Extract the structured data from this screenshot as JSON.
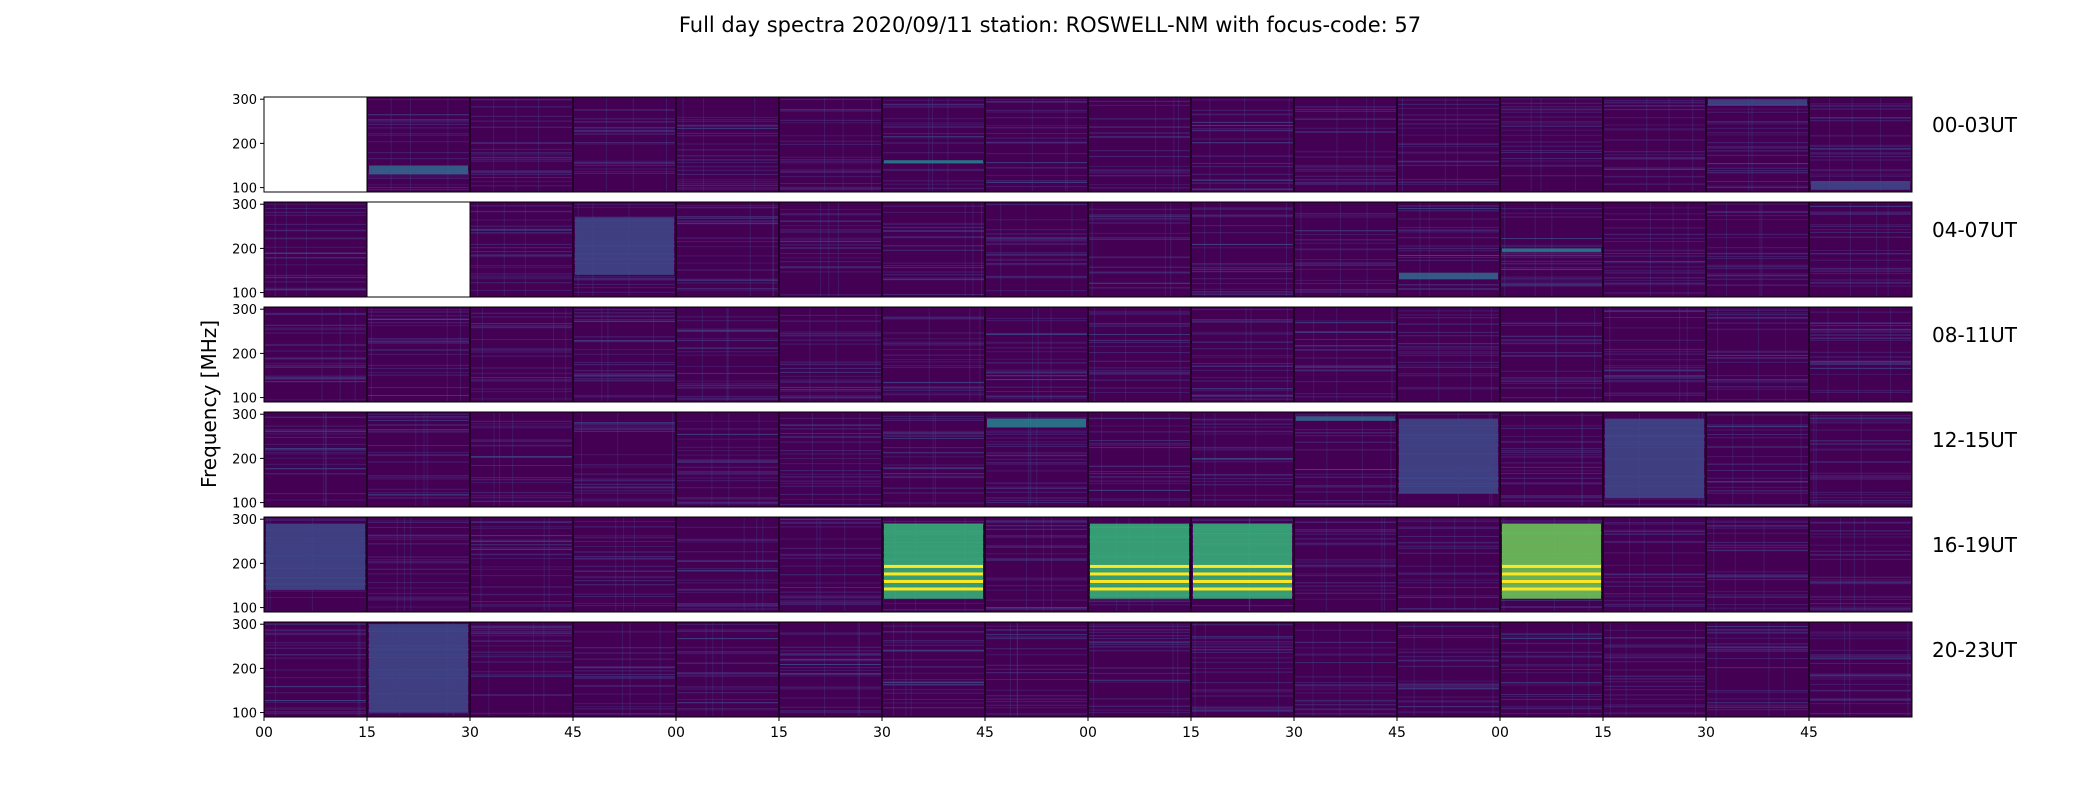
{
  "chart_data": {
    "type": "heatmap",
    "title": "Full day spectra 2020/09/11 station: ROSWELL-NM with focus-code: 57",
    "ylabel": "Frequency [MHz]",
    "xlabel": "",
    "ylim": [
      90,
      305
    ],
    "y_ticks": [
      "100",
      "200",
      "300"
    ],
    "x_ticks": [
      "00",
      "15",
      "30",
      "45",
      "00",
      "15",
      "30",
      "45",
      "00",
      "15",
      "30",
      "45",
      "00",
      "15",
      "30",
      "45"
    ],
    "panels_per_row": 16,
    "panel_minutes": 15,
    "colormap": [
      "#440154",
      "#482878",
      "#3e4989",
      "#31688e",
      "#26828e",
      "#1f9e89",
      "#35b779",
      "#6ece58",
      "#b5de2b",
      "#fde725"
    ],
    "rows": [
      {
        "label": "00-03UT",
        "empty_panels": [
          0
        ],
        "bright_bands": [
          {
            "panel": 1,
            "f0": 130,
            "f1": 150,
            "level": 0.35
          },
          {
            "panel": 6,
            "f0": 155,
            "f1": 162,
            "level": 0.45
          },
          {
            "panel": 15,
            "f0": 95,
            "f1": 115,
            "level": 0.3
          },
          {
            "panel": 14,
            "f0": 285,
            "f1": 300,
            "level": 0.3
          }
        ]
      },
      {
        "label": "04-07UT",
        "empty_panels": [
          1
        ],
        "bright_bands": [
          {
            "panel": 3,
            "f0": 140,
            "f1": 270,
            "level": 0.32
          },
          {
            "panel": 11,
            "f0": 130,
            "f1": 145,
            "level": 0.35
          },
          {
            "panel": 12,
            "f0": 192,
            "f1": 200,
            "level": 0.55
          }
        ]
      },
      {
        "label": "08-11UT",
        "empty_panels": [],
        "bright_bands": []
      },
      {
        "label": "12-15UT",
        "empty_panels": [],
        "bright_bands": [
          {
            "panel": 7,
            "f0": 270,
            "f1": 290,
            "level": 0.45
          },
          {
            "panel": 10,
            "f0": 285,
            "f1": 295,
            "level": 0.4
          },
          {
            "panel": 11,
            "f0": 120,
            "f1": 290,
            "level": 0.3
          },
          {
            "panel": 13,
            "f0": 110,
            "f1": 290,
            "level": 0.28
          }
        ]
      },
      {
        "label": "16-19UT",
        "empty_panels": [],
        "bright_bands": [
          {
            "panel": 0,
            "f0": 140,
            "f1": 290,
            "level": 0.3
          },
          {
            "panel": 6,
            "f0": 120,
            "f1": 290,
            "level": 0.75
          },
          {
            "panel": 8,
            "f0": 120,
            "f1": 290,
            "level": 0.7
          },
          {
            "panel": 9,
            "f0": 120,
            "f1": 290,
            "level": 0.7
          },
          {
            "panel": 12,
            "f0": 120,
            "f1": 290,
            "level": 0.78
          }
        ]
      },
      {
        "label": "20-23UT",
        "empty_panels": [],
        "bright_bands": [
          {
            "panel": 1,
            "f0": 100,
            "f1": 300,
            "level": 0.25
          }
        ]
      }
    ]
  }
}
